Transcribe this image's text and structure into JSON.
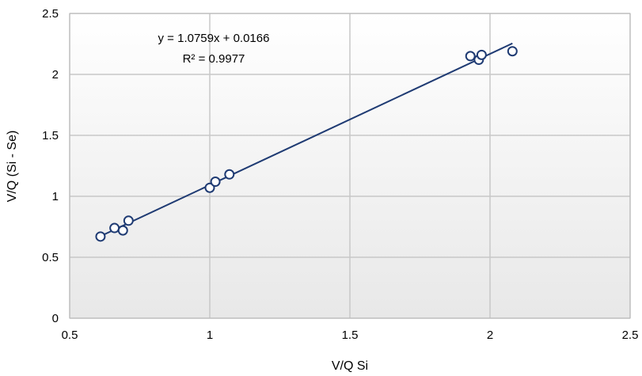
{
  "chart_data": {
    "type": "scatter",
    "title": "",
    "xlabel": "V/Q Si",
    "ylabel": "V/Q (Si - Se)",
    "xlim": [
      0.5,
      2.5
    ],
    "ylim": [
      0,
      2.5
    ],
    "xticks": [
      "0.5",
      "1",
      "1.5",
      "2",
      "2.5"
    ],
    "yticks": [
      "0",
      "0.5",
      "1",
      "1.5",
      "2",
      "2.5"
    ],
    "grid": true,
    "series": [
      {
        "marker": "open-circle",
        "color": "#1f3b73",
        "points": [
          {
            "x": 0.61,
            "y": 0.67
          },
          {
            "x": 0.66,
            "y": 0.74
          },
          {
            "x": 0.69,
            "y": 0.72
          },
          {
            "x": 0.71,
            "y": 0.8
          },
          {
            "x": 1.0,
            "y": 1.07
          },
          {
            "x": 1.02,
            "y": 1.12
          },
          {
            "x": 1.07,
            "y": 1.18
          },
          {
            "x": 1.93,
            "y": 2.15
          },
          {
            "x": 1.96,
            "y": 2.12
          },
          {
            "x": 1.97,
            "y": 2.16
          },
          {
            "x": 2.08,
            "y": 2.19
          }
        ]
      }
    ],
    "trendline": {
      "slope": 1.0759,
      "intercept": 0.0166,
      "x_range": [
        0.61,
        2.08
      ],
      "color": "#1f3b73"
    },
    "annotations": {
      "equation": "y = 1.0759x + 0.0166",
      "r_squared": "R² = 0.9977"
    },
    "colors": {
      "plot_bg_top": "#ffffff",
      "plot_bg_bottom": "#e8e8e8",
      "grid": "#c8c8c8"
    }
  }
}
